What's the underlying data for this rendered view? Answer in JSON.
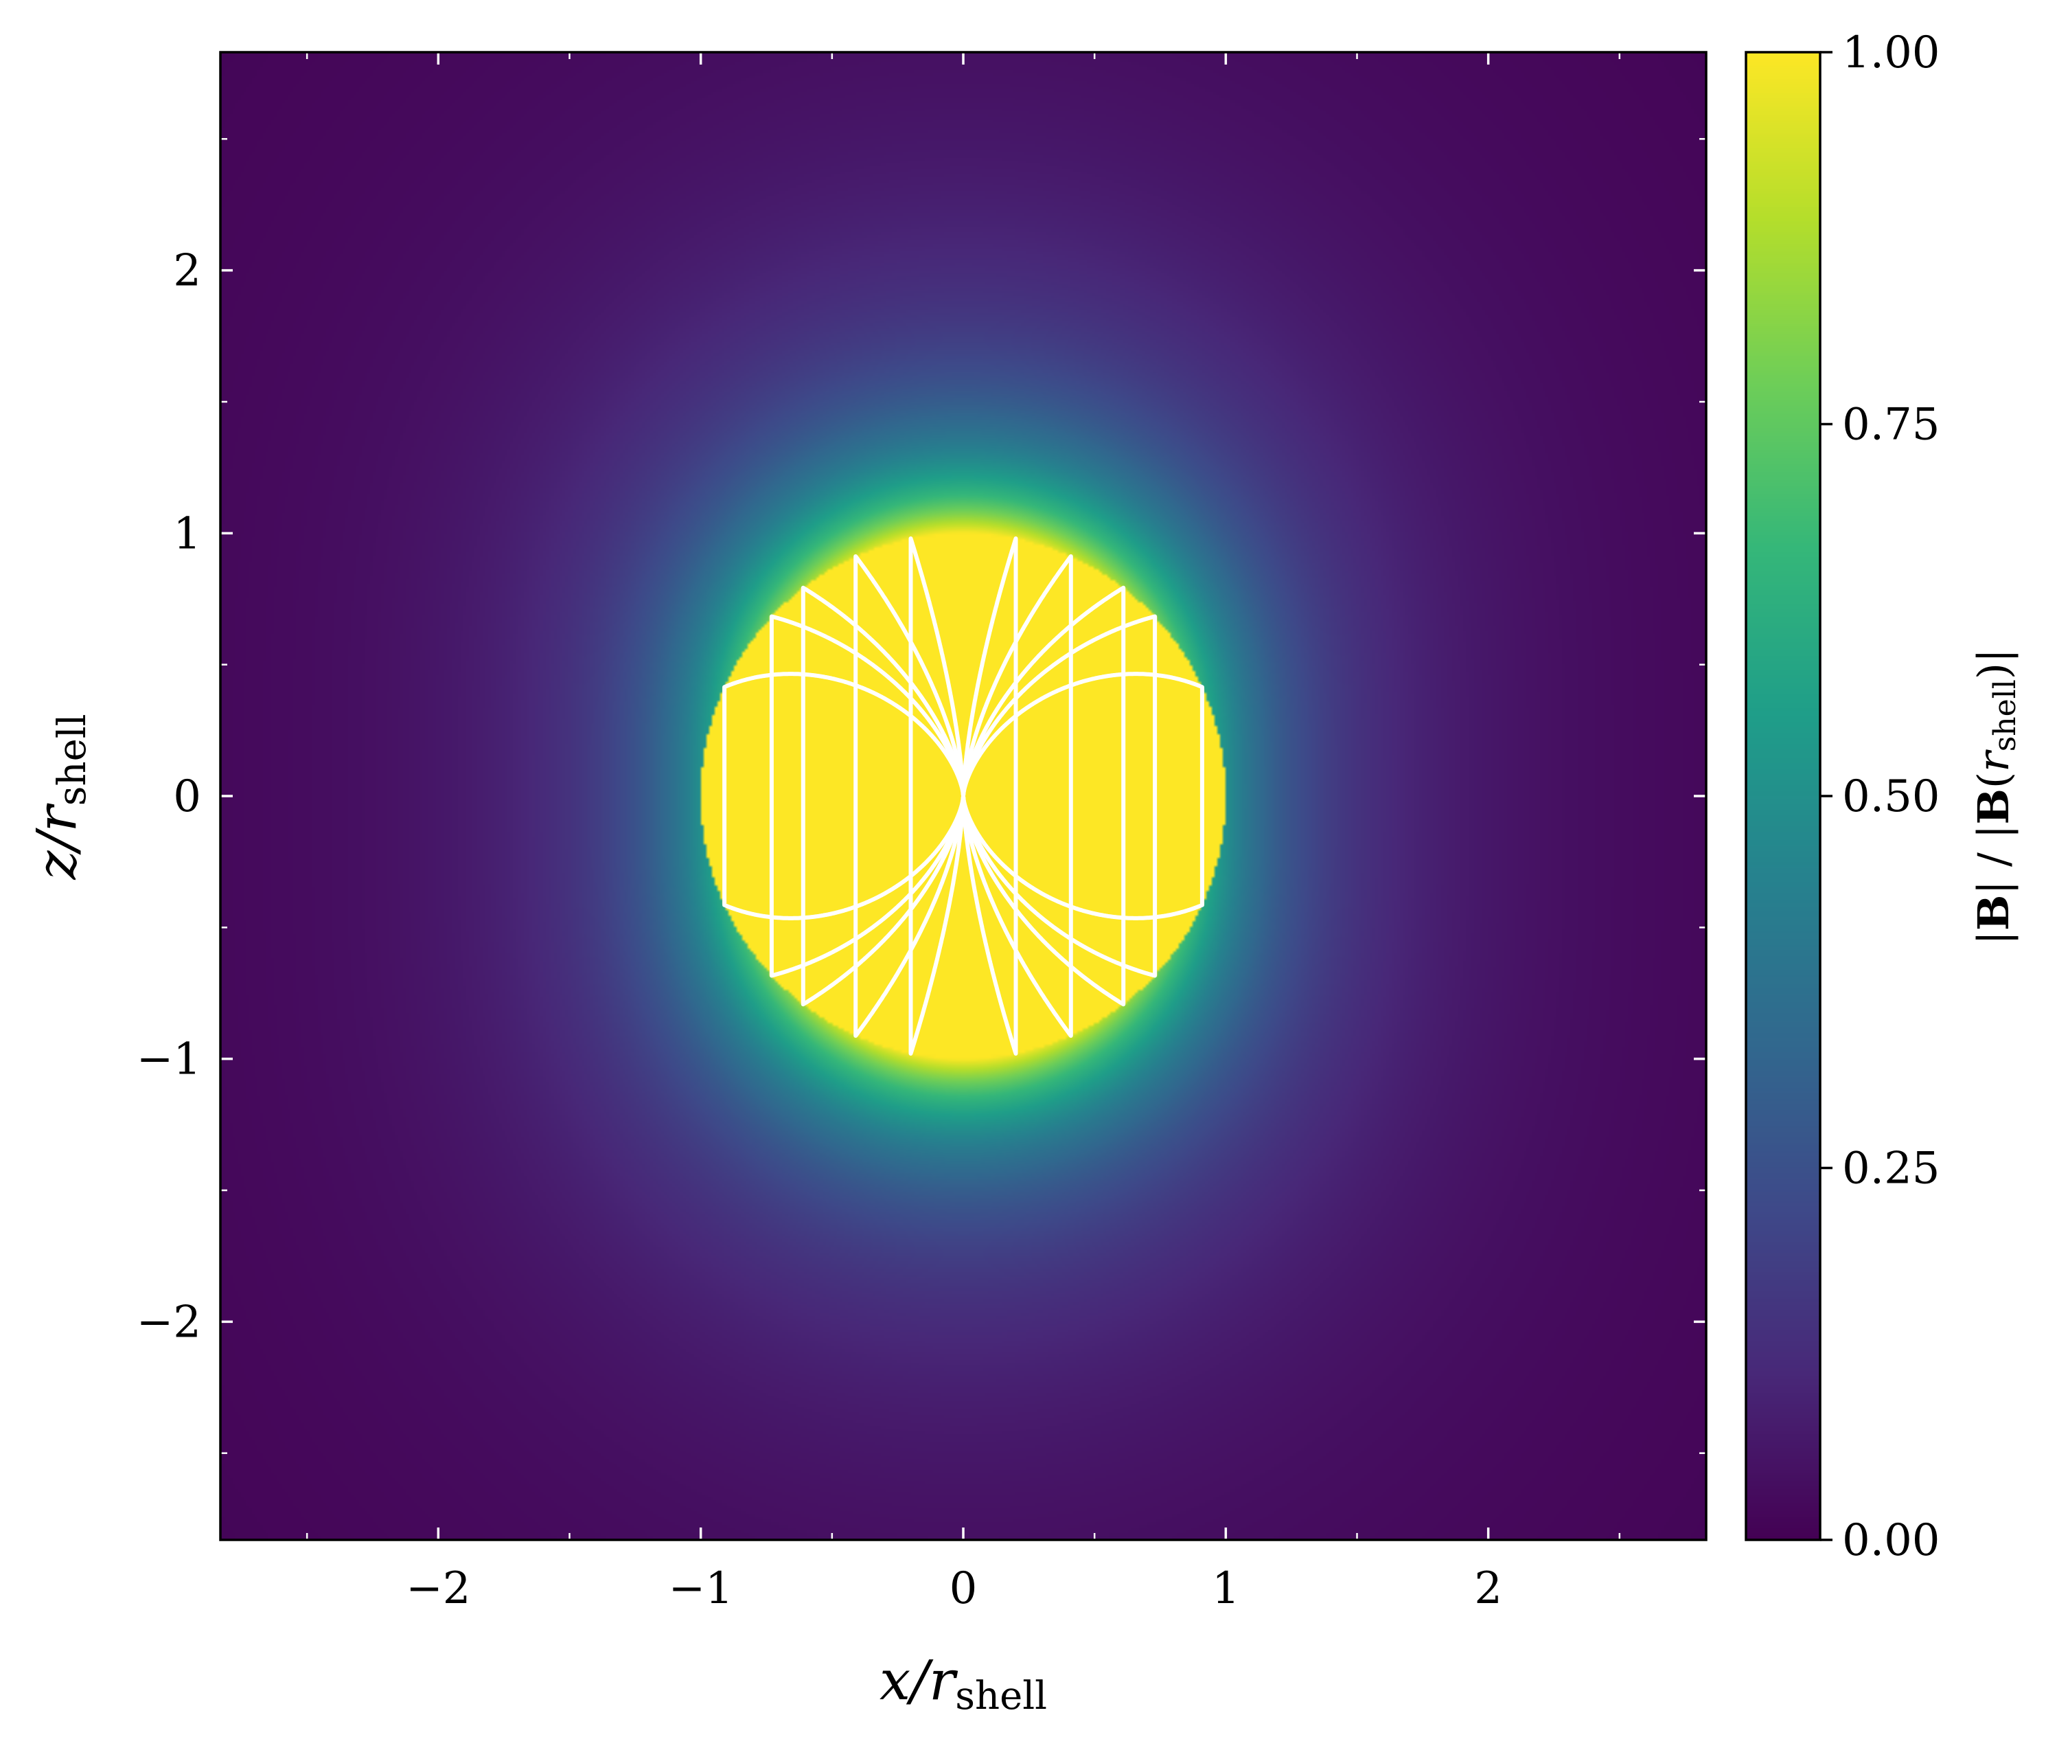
{
  "chart_data": {
    "type": "heatmap",
    "title": "",
    "xlabel": {
      "base": "x/r",
      "subscript": "shell"
    },
    "ylabel": {
      "base": "z/r",
      "subscript": "shell"
    },
    "xlim": [
      -2.83,
      2.83
    ],
    "ylim": [
      -2.83,
      2.83
    ],
    "xticks": [
      -2,
      -1,
      0,
      1,
      2
    ],
    "yticks": [
      -2,
      -1,
      0,
      1,
      2
    ],
    "xtick_labels": [
      "−2",
      "−1",
      "0",
      "1",
      "2"
    ],
    "ytick_labels": [
      "−2",
      "−1",
      "0",
      "1",
      "2"
    ],
    "minor_tick_step": 0.5,
    "grid": false,
    "colormap": "viridis",
    "colormap_stops": [
      "#440154",
      "#482878",
      "#3e4989",
      "#31688e",
      "#26828e",
      "#1f9e89",
      "#35b779",
      "#6ece58",
      "#b5de2b",
      "#fde725"
    ],
    "shell_radius": 1.0,
    "inside_value": 1.0,
    "field_model": "uniform inside the shell, dipole outside",
    "field_lines_color": "#ffffff",
    "field_line_x_at_center": [
      -0.91,
      -0.73,
      -0.61,
      -0.41,
      -0.2,
      0.2,
      0.41,
      0.61,
      0.73,
      0.91
    ],
    "colorbar": {
      "range": [
        0.0,
        1.0
      ],
      "ticks": [
        0.0,
        0.25,
        0.5,
        0.75,
        1.0
      ],
      "tick_labels": [
        "0.00",
        "0.25",
        "0.50",
        "0.75",
        "1.00"
      ],
      "label": {
        "abs_left": "|",
        "B_bold": "B",
        "mid": "| / |",
        "B2_bold": "B",
        "paren_open": "(",
        "r": "r",
        "sub": "shell",
        "close": ")|"
      }
    }
  }
}
